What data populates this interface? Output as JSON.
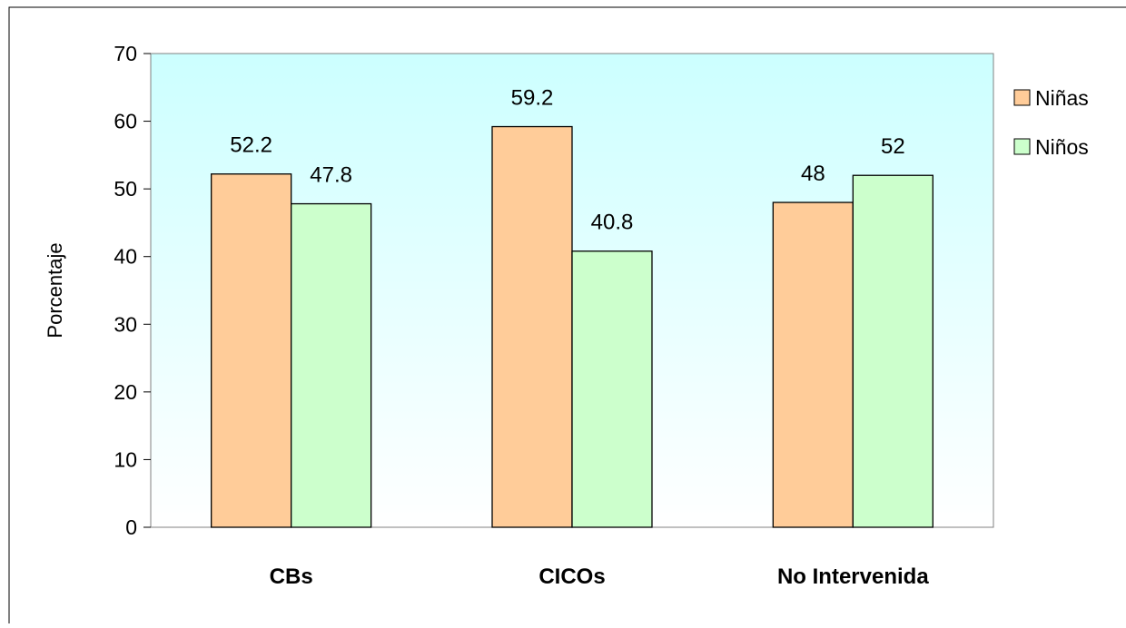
{
  "chart_data": {
    "type": "bar",
    "title": "",
    "xlabel": "",
    "ylabel": "Porcentaje",
    "ylim": [
      0,
      70
    ],
    "yticks": [
      0,
      10,
      20,
      30,
      40,
      50,
      60,
      70
    ],
    "grid": false,
    "legend_position": "right",
    "categories": [
      "CBs",
      "CICOs",
      "No Intervenida"
    ],
    "series": [
      {
        "name": "Niñas",
        "values": [
          52.2,
          59.2,
          48
        ],
        "labels": [
          "52.2",
          "59.2",
          "48"
        ],
        "color": "#FFCC99"
      },
      {
        "name": "Niños",
        "values": [
          47.8,
          40.8,
          52
        ],
        "labels": [
          "47.8",
          "40.8",
          "52"
        ],
        "color": "#CCFFCC"
      }
    ],
    "plot_background": {
      "top": "#CCFFFF",
      "bottom": "#FFFFFF"
    }
  }
}
